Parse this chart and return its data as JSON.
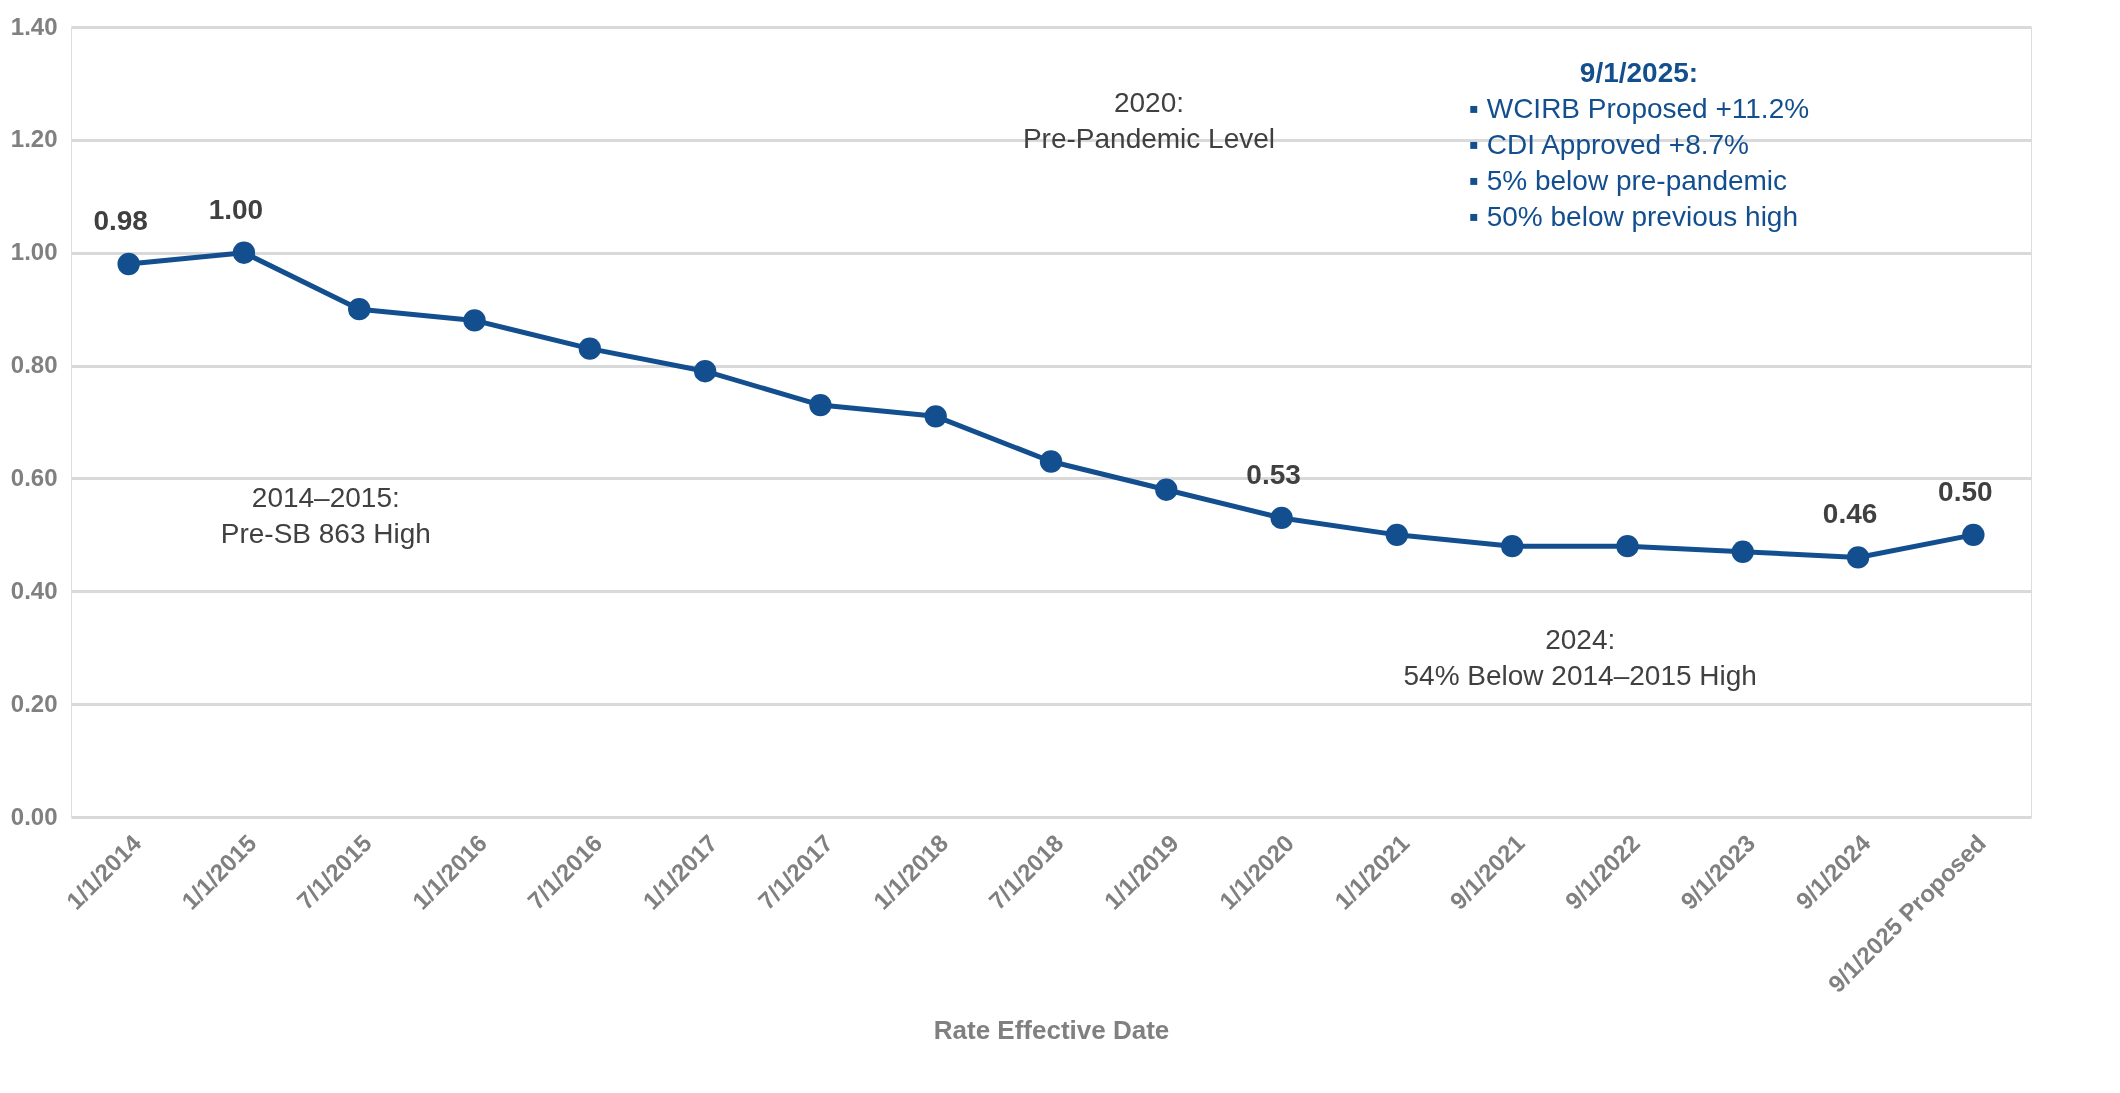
{
  "chart_data": {
    "type": "line",
    "xlabel": "Rate Effective Date",
    "categories": [
      "1/1/2014",
      "1/1/2015",
      "7/1/2015",
      "1/1/2016",
      "7/1/2016",
      "1/1/2017",
      "7/1/2017",
      "1/1/2018",
      "7/1/2018",
      "1/1/2019",
      "1/1/2020",
      "1/1/2021",
      "9/1/2021",
      "9/1/2022",
      "9/1/2023",
      "9/1/2024",
      "9/1/2025 Proposed"
    ],
    "series": [
      {
        "color": "#134f8e",
        "values": [
          0.98,
          1.0,
          0.9,
          0.88,
          0.83,
          0.79,
          0.73,
          0.71,
          0.63,
          0.58,
          0.53,
          0.5,
          0.48,
          0.48,
          0.47,
          0.46,
          0.5
        ],
        "value_labels": [
          "0.98",
          "1.00",
          null,
          null,
          null,
          null,
          null,
          null,
          null,
          null,
          "0.53",
          null,
          null,
          null,
          null,
          "0.46",
          "0.50"
        ]
      }
    ],
    "ylim": [
      0,
      1.4
    ],
    "yticks": [
      {
        "value": 0,
        "label": "0.00"
      },
      {
        "value": 0.2,
        "label": "0.20"
      },
      {
        "value": 0.4,
        "label": "0.40"
      },
      {
        "value": 0.6,
        "label": "0.60"
      },
      {
        "value": 0.8,
        "label": "0.80"
      },
      {
        "value": 1.0,
        "label": "1.00"
      },
      {
        "value": 1.2,
        "label": "1.20"
      },
      {
        "value": 1.4,
        "label": "1.40"
      }
    ],
    "grid": "y",
    "marker": "circle",
    "line_style": "solid",
    "annotations": [
      "2014–2015:\nPre-SB 863 High",
      "2020:\nPre-Pandemic Level",
      "2024:\n54% Below 2014–2015 High",
      "9/1/2025:\n▪  WCIRB Proposed +11.2%\n▪  CDI Approved +8.7%\n     ▪  5% below pre-pandemic\n     ▪  50% below previous high"
    ]
  }
}
